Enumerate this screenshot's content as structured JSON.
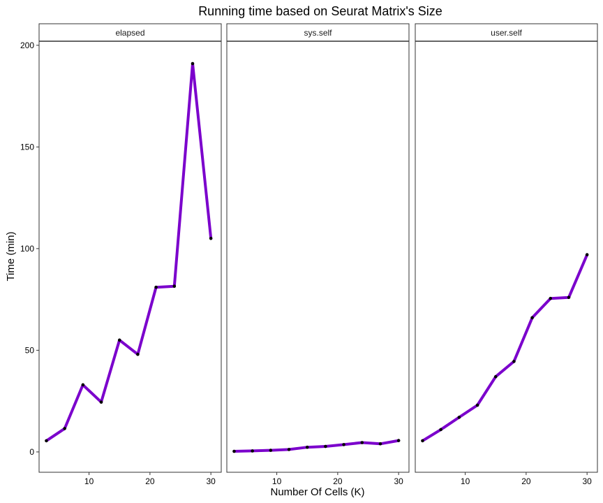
{
  "chart_data": {
    "type": "line",
    "title": "Running time based on Seurat Matrix's Size",
    "xlabel": "Number Of Cells (K)",
    "ylabel": "Time (min)",
    "x_ticks": [
      10,
      20,
      30
    ],
    "y_ticks": [
      0,
      50,
      100,
      150,
      200
    ],
    "xlim": [
      1.8,
      31.7
    ],
    "ylim": [
      -10,
      202
    ],
    "grid": false,
    "line_color": "#7b00cc",
    "point_color": "#000000",
    "x": [
      3,
      6,
      9,
      12,
      15,
      18,
      21,
      24,
      27,
      30
    ],
    "panels": [
      {
        "label": "elapsed",
        "values": [
          5.5,
          11.5,
          33.0,
          24.5,
          55.0,
          48.0,
          81.0,
          81.5,
          191.0,
          105.0
        ]
      },
      {
        "label": "sys.self",
        "values": [
          0.3,
          0.5,
          0.8,
          1.2,
          2.3,
          2.7,
          3.6,
          4.6,
          4.0,
          5.6
        ]
      },
      {
        "label": "user.self",
        "values": [
          5.5,
          11.0,
          17.0,
          23.0,
          37.0,
          44.5,
          66.0,
          75.5,
          76.0,
          97.0
        ]
      }
    ]
  }
}
